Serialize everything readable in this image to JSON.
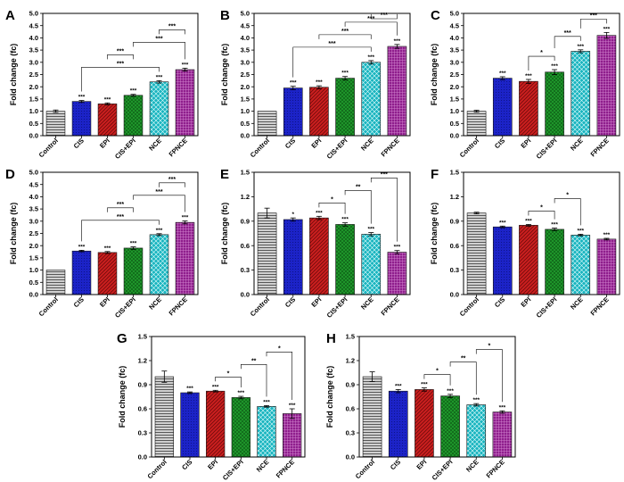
{
  "categories": [
    "Control",
    "CIS",
    "EPI",
    "CIS+EPI",
    "NCE",
    "FPNCE"
  ],
  "styles": {
    "Control": {
      "color": "#c8c8c8",
      "pattern": "hlines"
    },
    "CIS": {
      "color": "#1c23c8",
      "pattern": "dots"
    },
    "EPI": {
      "color": "#cc1f1f",
      "pattern": "diag"
    },
    "CIS+EPI": {
      "color": "#1f9a2c",
      "pattern": "cross"
    },
    "NCE": {
      "color": "#18b4bf",
      "pattern": "diagcross"
    },
    "FPNCE": {
      "color": "#8f1f8d",
      "pattern": "grid"
    }
  },
  "ylabel": "Fold change (fc)",
  "chart_data": [
    {
      "type": "bar",
      "panel": "A",
      "title": "",
      "xlabel": "",
      "ylabel": "Fold change (fc)",
      "ylim": [
        0,
        5.0
      ],
      "yticks": [
        0,
        0.5,
        1.0,
        1.5,
        2.0,
        2.5,
        3.0,
        3.5,
        4.0,
        4.5,
        5.0
      ],
      "tick_decimals": 1,
      "categories": [
        "Control",
        "CIS",
        "EPI",
        "CIS+EPI",
        "NCE",
        "FPNCE"
      ],
      "values": [
        1.0,
        1.4,
        1.3,
        1.65,
        2.2,
        2.7
      ],
      "errors": [
        0.05,
        0.04,
        0.04,
        0.04,
        0.05,
        0.06
      ],
      "bar_sig": [
        "",
        "***",
        "***",
        "***",
        "***",
        "***"
      ],
      "brackets": [
        {
          "from": 1,
          "to": 4,
          "label": "***"
        },
        {
          "from": 2,
          "to": 3,
          "label": "***"
        },
        {
          "from": 3,
          "to": 5,
          "label": "***"
        },
        {
          "from": 4,
          "to": 5,
          "label": "***"
        }
      ]
    },
    {
      "type": "bar",
      "panel": "B",
      "title": "",
      "xlabel": "",
      "ylabel": "Fold change (fc)",
      "ylim": [
        0,
        5.0
      ],
      "yticks": [
        0,
        0.5,
        1.0,
        1.5,
        2.0,
        2.5,
        3.0,
        3.5,
        4.0,
        4.5,
        5.0
      ],
      "tick_decimals": 1,
      "categories": [
        "Control",
        "CIS",
        "EPI",
        "CIS+EPI",
        "NCE",
        "FPNCE"
      ],
      "values": [
        1.0,
        1.95,
        1.98,
        2.35,
        3.0,
        3.65
      ],
      "errors": [
        0.0,
        0.07,
        0.06,
        0.07,
        0.07,
        0.08
      ],
      "bar_sig": [
        "",
        "***",
        "***",
        "***",
        "***",
        "***"
      ],
      "brackets": [
        {
          "from": 1,
          "to": 4,
          "label": "***"
        },
        {
          "from": 2,
          "to": 4,
          "label": "***"
        },
        {
          "from": 3,
          "to": 5,
          "label": "***"
        },
        {
          "from": 4,
          "to": 5,
          "label": "***"
        }
      ]
    },
    {
      "type": "bar",
      "panel": "C",
      "title": "",
      "xlabel": "",
      "ylabel": "Fold change (fc)",
      "ylim": [
        0,
        5.0
      ],
      "yticks": [
        0,
        0.5,
        1.0,
        1.5,
        2.0,
        2.5,
        3.0,
        3.5,
        4.0,
        4.5,
        5.0
      ],
      "tick_decimals": 1,
      "categories": [
        "Control",
        "CIS",
        "EPI",
        "CIS+EPI",
        "NCE",
        "FPNCE"
      ],
      "values": [
        1.0,
        2.35,
        2.22,
        2.6,
        3.45,
        4.1
      ],
      "errors": [
        0.04,
        0.06,
        0.08,
        0.1,
        0.06,
        0.12
      ],
      "bar_sig": [
        "",
        "***",
        "***",
        "***",
        "***",
        "***"
      ],
      "brackets": [
        {
          "from": 2,
          "to": 3,
          "label": "*"
        },
        {
          "from": 3,
          "to": 4,
          "label": "***"
        },
        {
          "from": 4,
          "to": 5,
          "label": "***"
        }
      ]
    },
    {
      "type": "bar",
      "panel": "D",
      "title": "",
      "xlabel": "",
      "ylabel": "Fold change (fc)",
      "ylim": [
        0,
        5.0
      ],
      "yticks": [
        0,
        0.5,
        1.0,
        1.5,
        2.0,
        2.5,
        3.0,
        3.5,
        4.0,
        4.5,
        5.0
      ],
      "tick_decimals": 1,
      "categories": [
        "Control",
        "CIS",
        "EPI",
        "CIS+EPI",
        "NCE",
        "FPNCE"
      ],
      "values": [
        1.0,
        1.78,
        1.72,
        1.9,
        2.45,
        2.95
      ],
      "errors": [
        0.0,
        0.03,
        0.04,
        0.05,
        0.04,
        0.06
      ],
      "bar_sig": [
        "",
        "***",
        "***",
        "***",
        "***",
        "***"
      ],
      "brackets": [
        {
          "from": 1,
          "to": 4,
          "label": "***"
        },
        {
          "from": 2,
          "to": 3,
          "label": "***"
        },
        {
          "from": 3,
          "to": 5,
          "label": "***"
        },
        {
          "from": 4,
          "to": 5,
          "label": "***"
        }
      ]
    },
    {
      "type": "bar",
      "panel": "E",
      "title": "",
      "xlabel": "",
      "ylabel": "Fold change (fc)",
      "ylim": [
        0,
        1.5
      ],
      "yticks": [
        0,
        0.3,
        0.6,
        0.9,
        1.2,
        1.5
      ],
      "tick_decimals": 1,
      "categories": [
        "Control",
        "CIS",
        "EPI",
        "CIS+EPI",
        "NCE",
        "FPNCE"
      ],
      "values": [
        1.0,
        0.92,
        0.94,
        0.86,
        0.74,
        0.52
      ],
      "errors": [
        0.06,
        0.02,
        0.02,
        0.02,
        0.02,
        0.02
      ],
      "bar_sig": [
        "",
        "*",
        "***",
        "***",
        "***",
        "***"
      ],
      "brackets": [
        {
          "from": 2,
          "to": 3,
          "label": "*"
        },
        {
          "from": 3,
          "to": 4,
          "label": "**"
        },
        {
          "from": 4,
          "to": 5,
          "label": "***"
        }
      ]
    },
    {
      "type": "bar",
      "panel": "F",
      "title": "",
      "xlabel": "",
      "ylabel": "Fold change (fc)",
      "ylim": [
        0,
        1.5
      ],
      "yticks": [
        0,
        0.3,
        0.6,
        0.9,
        1.2,
        1.5
      ],
      "tick_decimals": 1,
      "categories": [
        "Control",
        "CIS",
        "EPI",
        "CIS+EPI",
        "NCE",
        "FPNCE"
      ],
      "values": [
        1.0,
        0.83,
        0.85,
        0.8,
        0.73,
        0.68
      ],
      "errors": [
        0.01,
        0.01,
        0.01,
        0.015,
        0.01,
        0.01
      ],
      "bar_sig": [
        "",
        "***",
        "***",
        "***",
        "***",
        "***"
      ],
      "brackets": [
        {
          "from": 2,
          "to": 3,
          "label": "*"
        },
        {
          "from": 3,
          "to": 4,
          "label": "*"
        }
      ]
    },
    {
      "type": "bar",
      "panel": "G",
      "title": "",
      "xlabel": "",
      "ylabel": "Fold change (fc)",
      "ylim": [
        0,
        1.5
      ],
      "yticks": [
        0,
        0.3,
        0.6,
        0.9,
        1.2,
        1.5
      ],
      "tick_decimals": 1,
      "categories": [
        "Control",
        "CIS",
        "EPI",
        "CIS+EPI",
        "NCE",
        "FPNCE"
      ],
      "values": [
        1.0,
        0.8,
        0.82,
        0.74,
        0.63,
        0.54
      ],
      "errors": [
        0.07,
        0.01,
        0.01,
        0.015,
        0.01,
        0.06
      ],
      "bar_sig": [
        "",
        "***",
        "***",
        "***",
        "***",
        "***"
      ],
      "brackets": [
        {
          "from": 2,
          "to": 3,
          "label": "*"
        },
        {
          "from": 3,
          "to": 4,
          "label": "**"
        },
        {
          "from": 4,
          "to": 5,
          "label": "*"
        }
      ]
    },
    {
      "type": "bar",
      "panel": "H",
      "title": "",
      "xlabel": "",
      "ylabel": "Fold change (fc)",
      "ylim": [
        0,
        1.5
      ],
      "yticks": [
        0,
        0.3,
        0.6,
        0.9,
        1.2,
        1.5
      ],
      "tick_decimals": 1,
      "categories": [
        "Control",
        "CIS",
        "EPI",
        "CIS+EPI",
        "NCE",
        "FPNCE"
      ],
      "values": [
        1.0,
        0.82,
        0.84,
        0.76,
        0.65,
        0.56
      ],
      "errors": [
        0.06,
        0.02,
        0.02,
        0.02,
        0.015,
        0.015
      ],
      "bar_sig": [
        "",
        "***",
        "***",
        "***",
        "***",
        "***"
      ],
      "brackets": [
        {
          "from": 2,
          "to": 3,
          "label": "*"
        },
        {
          "from": 3,
          "to": 4,
          "label": "**"
        },
        {
          "from": 4,
          "to": 5,
          "label": "*"
        }
      ]
    }
  ]
}
